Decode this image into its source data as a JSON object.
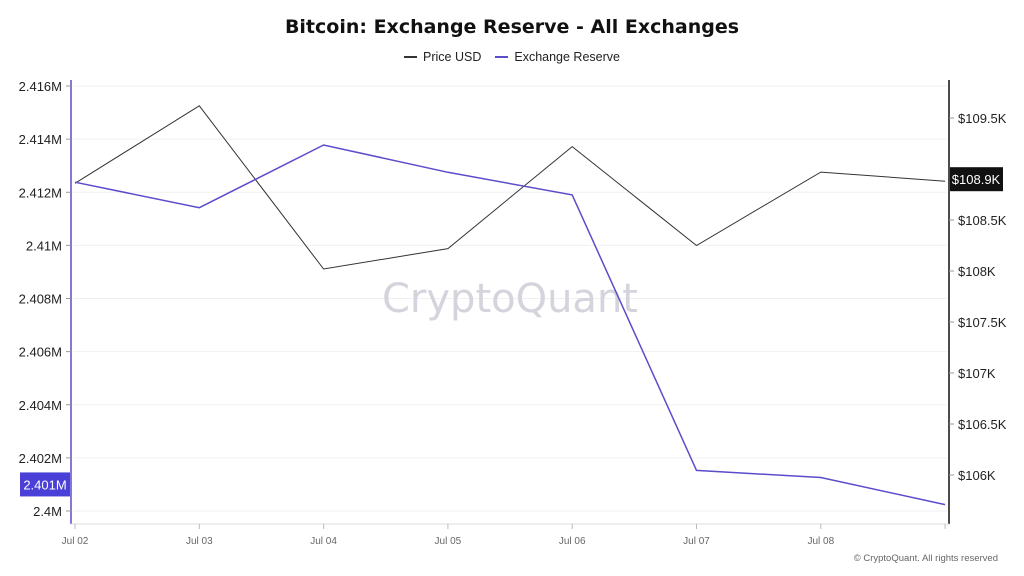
{
  "title": "Bitcoin: Exchange Reserve - All Exchanges",
  "watermark": "CryptoQuant",
  "footer": "© CryptoQuant. All rights reserved",
  "colors": {
    "price": "#333333",
    "reserve": "#5b4ccc",
    "highlight_left": "#4a3fd6",
    "highlight_right": "#111111"
  },
  "chart_data": {
    "type": "line",
    "title": "Bitcoin: Exchange Reserve - All Exchanges",
    "categories": [
      "Jul 02",
      "Jul 03",
      "Jul 04",
      "Jul 05",
      "Jul 06",
      "Jul 07",
      "Jul 08",
      ""
    ],
    "series": [
      {
        "name": "Price USD",
        "axis": "right",
        "values": [
          108860,
          109620,
          108020,
          108220,
          109220,
          108250,
          108970,
          108880
        ]
      },
      {
        "name": "Exchange Reserve",
        "axis": "left",
        "values": [
          2412380,
          2411420,
          2413780,
          2412750,
          2411900,
          2401530,
          2401260,
          2400240
        ]
      }
    ],
    "left_axis": {
      "range": [
        2400000,
        2416000
      ],
      "ticks": [
        "2.4M",
        "2.402M",
        "2.404M",
        "2.406M",
        "2.408M",
        "2.41M",
        "2.412M",
        "2.414M",
        "2.416M"
      ],
      "tick_values": [
        2400000,
        2402000,
        2404000,
        2406000,
        2408000,
        2410000,
        2412000,
        2414000,
        2416000
      ],
      "current_label": "2.401M",
      "current_value": 2401000
    },
    "right_axis": {
      "range": [
        105650,
        109800
      ],
      "ticks": [
        "$106K",
        "$106.5K",
        "$107K",
        "$107.5K",
        "$108K",
        "$108.5K",
        "$109K",
        "$109.5K"
      ],
      "tick_values": [
        106000,
        106500,
        107000,
        107500,
        108000,
        108500,
        109000,
        109500
      ],
      "current_label": "$108.9K",
      "current_value": 108900
    },
    "legend": {
      "position": "top-center",
      "entries": [
        "Price USD",
        "Exchange Reserve"
      ]
    },
    "grid": true
  }
}
